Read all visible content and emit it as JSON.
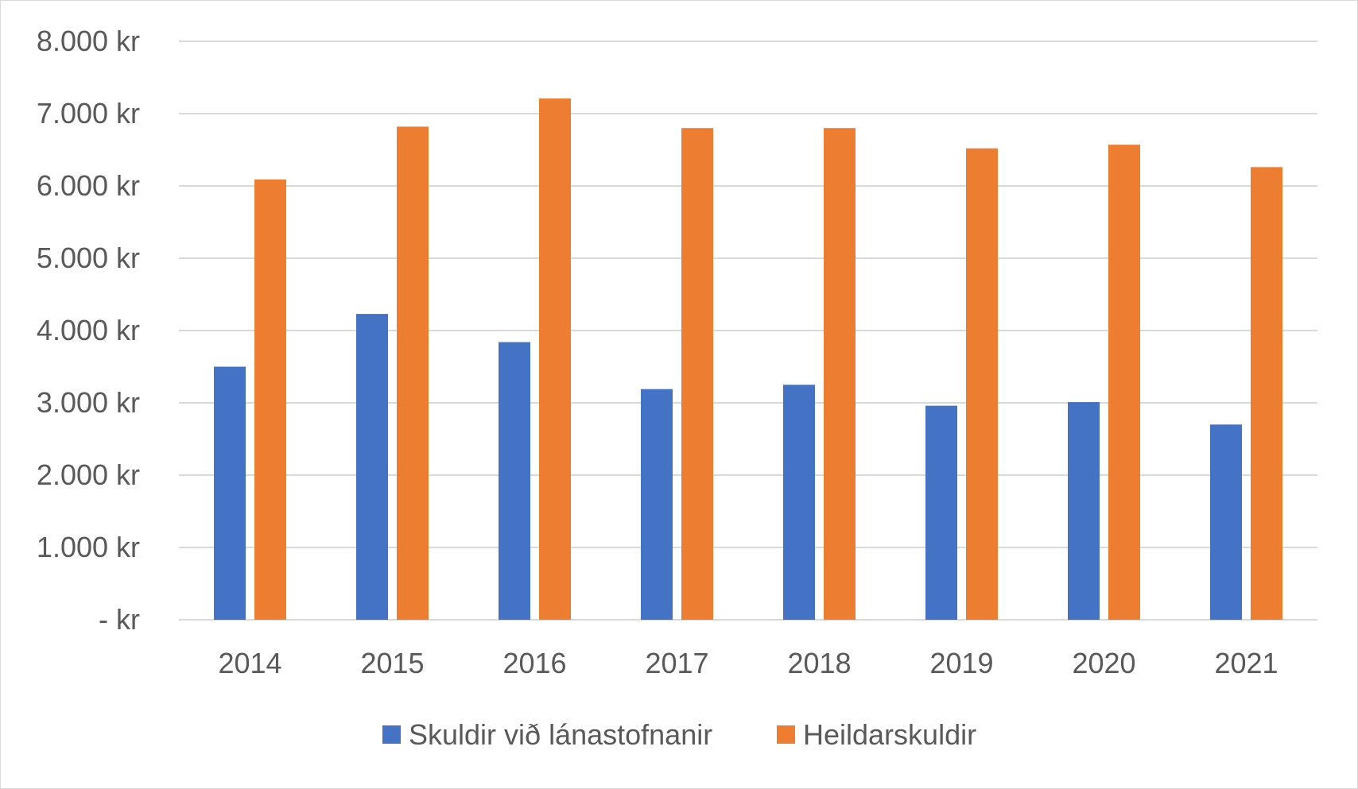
{
  "chart_data": {
    "type": "bar",
    "categories": [
      "2014",
      "2015",
      "2016",
      "2017",
      "2018",
      "2019",
      "2020",
      "2021"
    ],
    "series": [
      {
        "name": "Skuldir við lánastofnanir",
        "color": "#4472C4",
        "values": [
          3500,
          4230,
          3840,
          3190,
          3250,
          2960,
          3010,
          2700
        ]
      },
      {
        "name": "Heildarskuldir",
        "color": "#ED7D31",
        "values": [
          6090,
          6820,
          7210,
          6800,
          6800,
          6520,
          6570,
          6260
        ]
      }
    ],
    "ylim": [
      0,
      8000
    ],
    "yticks": [
      {
        "value": 0,
        "label": "-   kr"
      },
      {
        "value": 1000,
        "label": "1.000 kr"
      },
      {
        "value": 2000,
        "label": "2.000 kr"
      },
      {
        "value": 3000,
        "label": "3.000 kr"
      },
      {
        "value": 4000,
        "label": "4.000 kr"
      },
      {
        "value": 5000,
        "label": "5.000 kr"
      },
      {
        "value": 6000,
        "label": "6.000 kr"
      },
      {
        "value": 7000,
        "label": "7.000 kr"
      },
      {
        "value": 8000,
        "label": "8.000 kr"
      }
    ],
    "grid": true,
    "legend_position": "bottom",
    "gridline_color": "#d9d9d9",
    "text_color": "#595959"
  }
}
